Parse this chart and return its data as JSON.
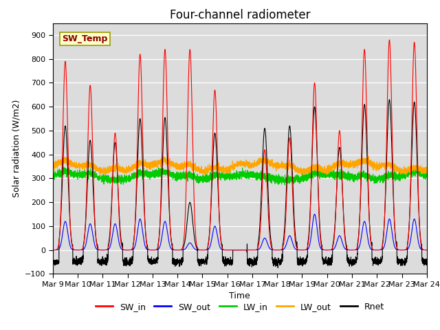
{
  "title": "Four-channel radiometer",
  "xlabel": "Time",
  "ylabel": "Solar radiation (W/m2)",
  "ylim": [
    -100,
    950
  ],
  "x_tick_labels": [
    "Mar 9",
    "Mar 10",
    "Mar 11",
    "Mar 12",
    "Mar 13",
    "Mar 14",
    "Mar 15",
    "Mar 16",
    "Mar 17",
    "Mar 18",
    "Mar 19",
    "Mar 20",
    "Mar 21",
    "Mar 22",
    "Mar 23",
    "Mar 24"
  ],
  "annotation_text": "SW_Temp",
  "annotation_color": "#8B0000",
  "annotation_bg": "#FFFFCC",
  "bg_color": "#DCDCDC",
  "colors": {
    "SW_in": "#FF0000",
    "SW_out": "#0000FF",
    "LW_in": "#00CC00",
    "LW_out": "#FFA500",
    "Rnet": "#000000"
  },
  "legend_labels": [
    "SW_in",
    "SW_out",
    "LW_in",
    "LW_out",
    "Rnet"
  ],
  "sw_peaks": [
    790,
    690,
    490,
    820,
    840,
    840,
    670,
    0,
    420,
    470,
    700,
    500,
    840,
    880,
    870
  ],
  "sw_out_peaks": [
    120,
    110,
    110,
    130,
    120,
    30,
    100,
    0,
    50,
    60,
    150,
    60,
    120,
    130,
    130
  ],
  "rnet_peaks": [
    520,
    460,
    450,
    550,
    555,
    200,
    490,
    0,
    510,
    520,
    600,
    430,
    610,
    630,
    620
  ],
  "lw_in_base": 305,
  "lw_out_base": 340,
  "n_days": 15,
  "pts_per_day": 288
}
